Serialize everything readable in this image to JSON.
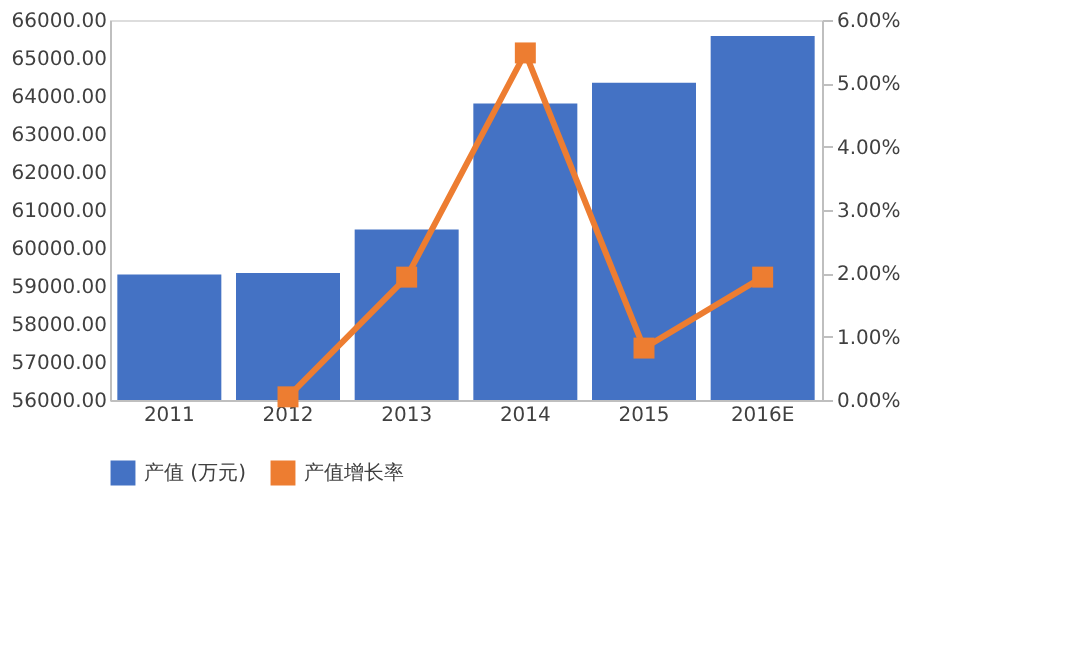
{
  "chart_data": {
    "type": "bar",
    "categories": [
      "2011",
      "2012",
      "2013",
      "2014",
      "2015",
      "2016E"
    ],
    "series": [
      {
        "name": "产值 (万元)",
        "color": "#4472c4",
        "values": [
          59300,
          59340,
          60490,
          63800,
          64350,
          65580
        ]
      },
      {
        "name": "产值增长率",
        "type": "line",
        "axis": "y2",
        "color": "#ed7d31",
        "marker": "square",
        "values": [
          null,
          0.05,
          1.94,
          5.48,
          0.82,
          1.94
        ]
      }
    ],
    "ylim": [
      56000,
      66000
    ],
    "yticks": [
      {
        "value": 56000,
        "label": "56000.00"
      },
      {
        "value": 57000,
        "label": "57000.00"
      },
      {
        "value": 58000,
        "label": "58000.00"
      },
      {
        "value": 59000,
        "label": "59000.00"
      },
      {
        "value": 60000,
        "label": "60000.00"
      },
      {
        "value": 61000,
        "label": "61000.00"
      },
      {
        "value": 62000,
        "label": "62000.00"
      },
      {
        "value": 63000,
        "label": "63000.00"
      },
      {
        "value": 64000,
        "label": "64000.00"
      },
      {
        "value": 65000,
        "label": "65000.00"
      },
      {
        "value": 66000,
        "label": "66000.00"
      }
    ],
    "y2lim": [
      0,
      6
    ],
    "y2ticks": [
      {
        "value": 0,
        "label": "0.00%"
      },
      {
        "value": 1,
        "label": "1.00%"
      },
      {
        "value": 2,
        "label": "2.00%"
      },
      {
        "value": 3,
        "label": "3.00%"
      },
      {
        "value": 4,
        "label": "4.00%"
      },
      {
        "value": 5,
        "label": "5.00%"
      },
      {
        "value": 6,
        "label": "6.00%"
      }
    ],
    "grid": false,
    "legend": "bottom"
  }
}
